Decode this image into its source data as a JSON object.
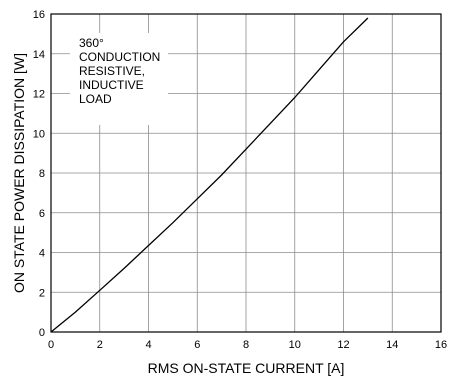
{
  "chart_data": {
    "type": "line",
    "title": "",
    "xlabel": "RMS ON-STATE CURRENT [A]",
    "ylabel": "ON STATE POWER DISSIPATION [W]",
    "xlim": [
      0,
      16
    ],
    "ylim": [
      0,
      16
    ],
    "xticks": [
      "0",
      "2",
      "4",
      "6",
      "8",
      "10",
      "12",
      "14",
      "16"
    ],
    "yticks": [
      "0",
      "2",
      "4",
      "6",
      "8",
      "10",
      "12",
      "14",
      "16"
    ],
    "grid": true,
    "annotation": [
      "360°",
      "CONDUCTION",
      "RESISTIVE,",
      "INDUCTIVE",
      "LOAD"
    ],
    "series": [
      {
        "x": [
          0,
          1,
          2,
          3,
          4,
          5,
          6,
          7,
          8,
          9,
          10,
          11,
          12,
          13
        ],
        "y": [
          0,
          1.0,
          2.1,
          3.2,
          4.35,
          5.5,
          6.7,
          7.9,
          9.2,
          10.5,
          11.8,
          13.2,
          14.6,
          15.8
        ]
      }
    ],
    "colors": {
      "line": "#000000",
      "grid": "#8c8c8c",
      "frame": "#000000"
    }
  }
}
